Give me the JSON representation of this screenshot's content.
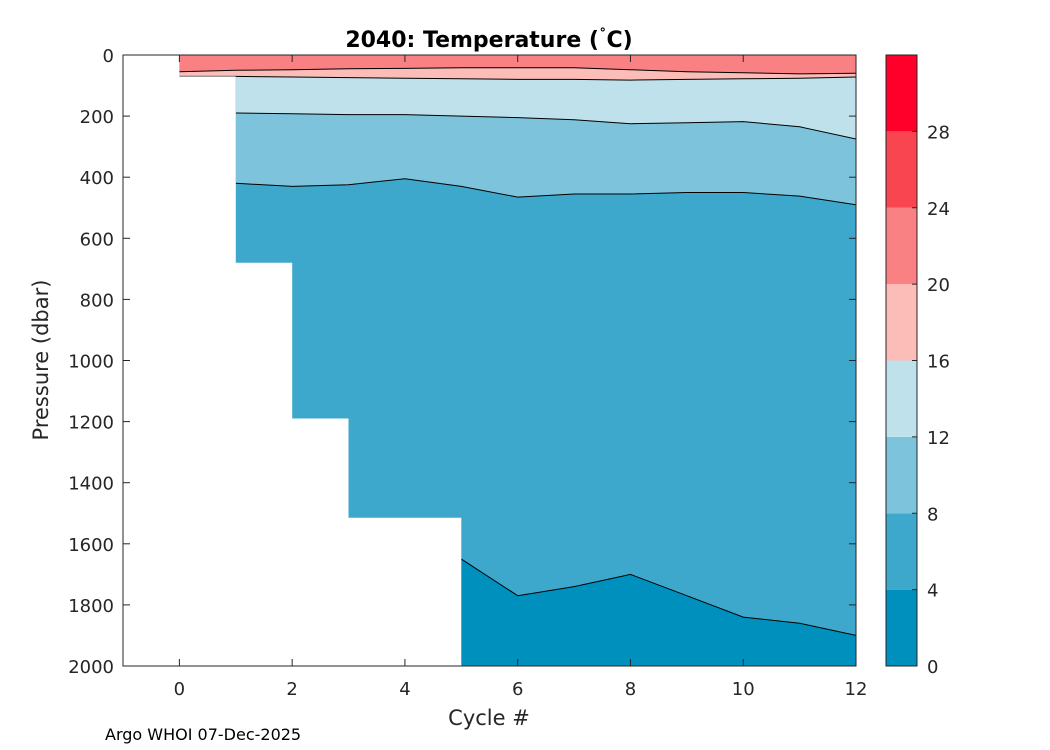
{
  "footer": "Argo WHOI 07-Dec-2025",
  "chart_data": {
    "type": "filled-contour",
    "title": "2040:  Temperature (",
    "title_degree": "˚",
    "title_unit": "C)",
    "xlabel": "Cycle #",
    "ylabel": "Pressure (dbar)",
    "xlim": [
      -1,
      12
    ],
    "ylim": [
      2000,
      0
    ],
    "x_ticks": [
      0,
      2,
      4,
      6,
      8,
      10,
      12
    ],
    "x_tick_labels": [
      "0",
      "2",
      "4",
      "6",
      "8",
      "10",
      "12"
    ],
    "y_ticks": [
      0,
      200,
      400,
      600,
      800,
      1000,
      1200,
      1400,
      1600,
      1800,
      2000
    ],
    "y_tick_labels": [
      "0",
      "200",
      "400",
      "600",
      "800",
      "1000",
      "1200",
      "1400",
      "1600",
      "1800",
      "2000"
    ],
    "colorbar": {
      "levels": [
        0,
        4,
        8,
        12,
        16,
        20,
        24,
        28,
        32
      ],
      "tick_values": [
        0,
        4,
        8,
        12,
        16,
        20,
        24,
        28
      ],
      "tick_labels": [
        "0",
        "4",
        "8",
        "12",
        "16",
        "20",
        "24",
        "28"
      ],
      "colors": [
        "#0090be",
        "#3ea8cc",
        "#7dc3dc",
        "#bfe1ec",
        "#fcbcb7",
        "#f98183",
        "#f9454f",
        "#fe0029"
      ]
    },
    "profile_max_pressure": {
      "cycles": [
        0,
        1,
        2,
        3,
        4,
        5,
        6,
        7,
        8,
        9,
        10,
        11,
        12
      ],
      "pressure": [
        70,
        680,
        1190,
        1515,
        1515,
        2000,
        2000,
        2000,
        2000,
        2000,
        2000,
        2000,
        2000
      ]
    },
    "isotherms": [
      {
        "level": 20,
        "x": [
          0,
          1,
          2,
          3,
          4,
          5,
          6,
          7,
          8,
          9,
          10,
          11,
          12
        ],
        "p": [
          55,
          50,
          48,
          45,
          44,
          42,
          42,
          42,
          48,
          55,
          58,
          62,
          60
        ]
      },
      {
        "level": 16,
        "x": [
          0,
          1,
          2,
          3,
          4,
          5,
          6,
          7,
          8,
          9,
          10,
          11,
          12
        ],
        "p": [
          70,
          70,
          72,
          74,
          76,
          78,
          80,
          80,
          82,
          80,
          78,
          76,
          72
        ]
      },
      {
        "level": 12,
        "x": [
          1,
          2,
          3,
          4,
          5,
          6,
          7,
          8,
          9,
          10,
          11,
          12
        ],
        "p": [
          190,
          192,
          195,
          195,
          200,
          205,
          212,
          225,
          222,
          218,
          235,
          275
        ]
      },
      {
        "level": 8,
        "x": [
          1,
          2,
          3,
          4,
          5,
          6,
          7,
          8,
          9,
          10,
          11,
          12
        ],
        "p": [
          420,
          430,
          425,
          405,
          430,
          465,
          455,
          455,
          450,
          450,
          462,
          490
        ]
      },
      {
        "level": 4,
        "x": [
          5,
          6,
          7,
          8,
          9,
          10,
          11,
          12
        ],
        "p": [
          1650,
          1770,
          1740,
          1700,
          1770,
          1840,
          1860,
          1900
        ]
      }
    ]
  }
}
